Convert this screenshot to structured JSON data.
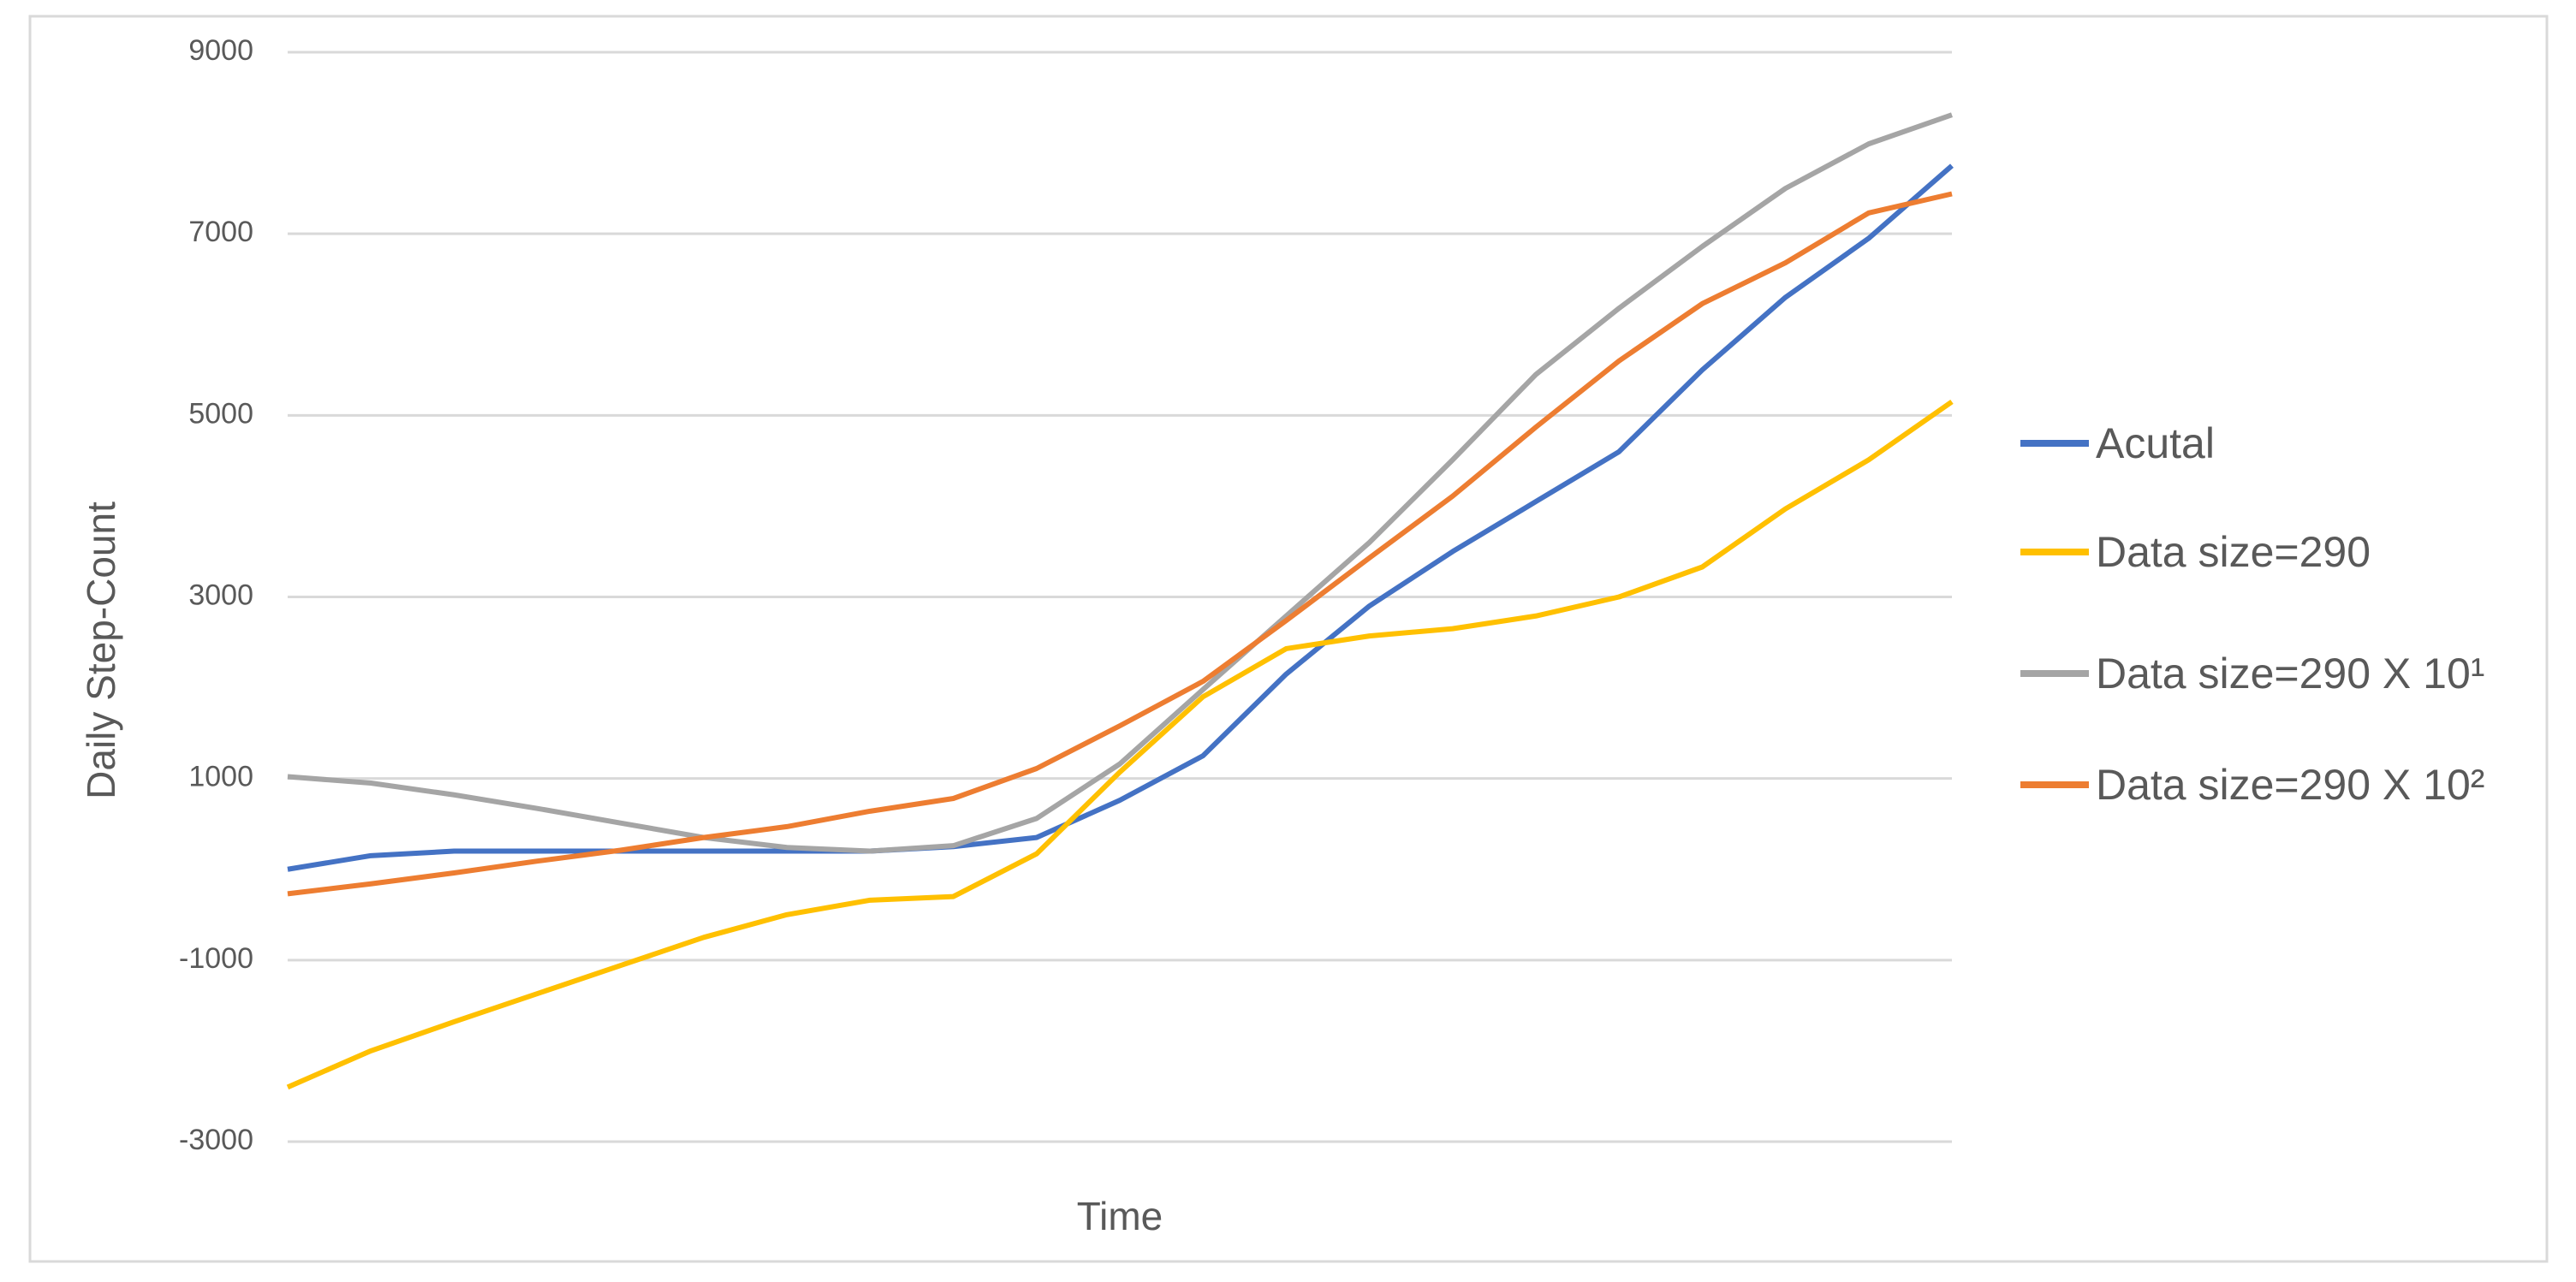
{
  "chart_data": {
    "type": "line",
    "x_label": "Time",
    "y_label": "Daily Step-Count",
    "categories": [
      null,
      null,
      null,
      null,
      null,
      null,
      null,
      null,
      null,
      null,
      null,
      null,
      null,
      null,
      null,
      null,
      null,
      null,
      null,
      null,
      null
    ],
    "ylim": [
      -3000,
      9000
    ],
    "yticks": [
      -3000,
      -1000,
      1000,
      3000,
      5000,
      7000,
      9000
    ],
    "grid": true,
    "legend": "right",
    "series": [
      {
        "name": "Acutal",
        "color": "#4472c4",
        "values": [
          0,
          150,
          200,
          200,
          200,
          200,
          200,
          200,
          250,
          350,
          760,
          1250,
          2150,
          2900,
          3500,
          4050,
          4600,
          5500,
          6300,
          6950,
          7750
        ]
      },
      {
        "name": "Data size=290",
        "color": "#ffc000",
        "values": [
          -2400,
          -2000,
          -1680,
          -1370,
          -1060,
          -750,
          -500,
          -340,
          -300,
          170,
          1070,
          1900,
          2430,
          2570,
          2650,
          2790,
          3000,
          3330,
          3970,
          4510,
          5150
        ]
      },
      {
        "name": "Data size=290 X 10¹",
        "color": "#a5a5a5",
        "values": [
          1020,
          950,
          820,
          670,
          510,
          350,
          240,
          200,
          260,
          560,
          1160,
          1980,
          2790,
          3600,
          4510,
          5450,
          6180,
          6860,
          7500,
          7990,
          8310
        ]
      },
      {
        "name": "Data size=290 X 10²",
        "color": "#ed7d31",
        "values": [
          -270,
          -160,
          -40,
          90,
          210,
          350,
          470,
          640,
          780,
          1110,
          1580,
          2070,
          2740,
          3430,
          4110,
          4870,
          5600,
          6230,
          6680,
          7230,
          7440
        ]
      }
    ]
  }
}
